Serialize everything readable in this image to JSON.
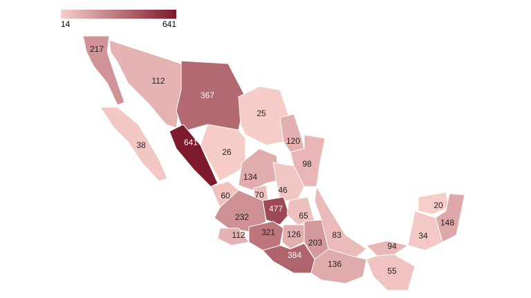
{
  "chart_data": {
    "type": "choropleth",
    "colorscale": {
      "min": 14,
      "max": 641,
      "colors": [
        "#f8cfca",
        "#7d1a2b"
      ]
    },
    "values": [
      217,
      112,
      367,
      25,
      38,
      641,
      26,
      120,
      98,
      134,
      70,
      46,
      60,
      477,
      65,
      232,
      20,
      148,
      34,
      112,
      321,
      126,
      203,
      83,
      94,
      384,
      136,
      55
    ],
    "border_color": "#ffffff"
  }
}
